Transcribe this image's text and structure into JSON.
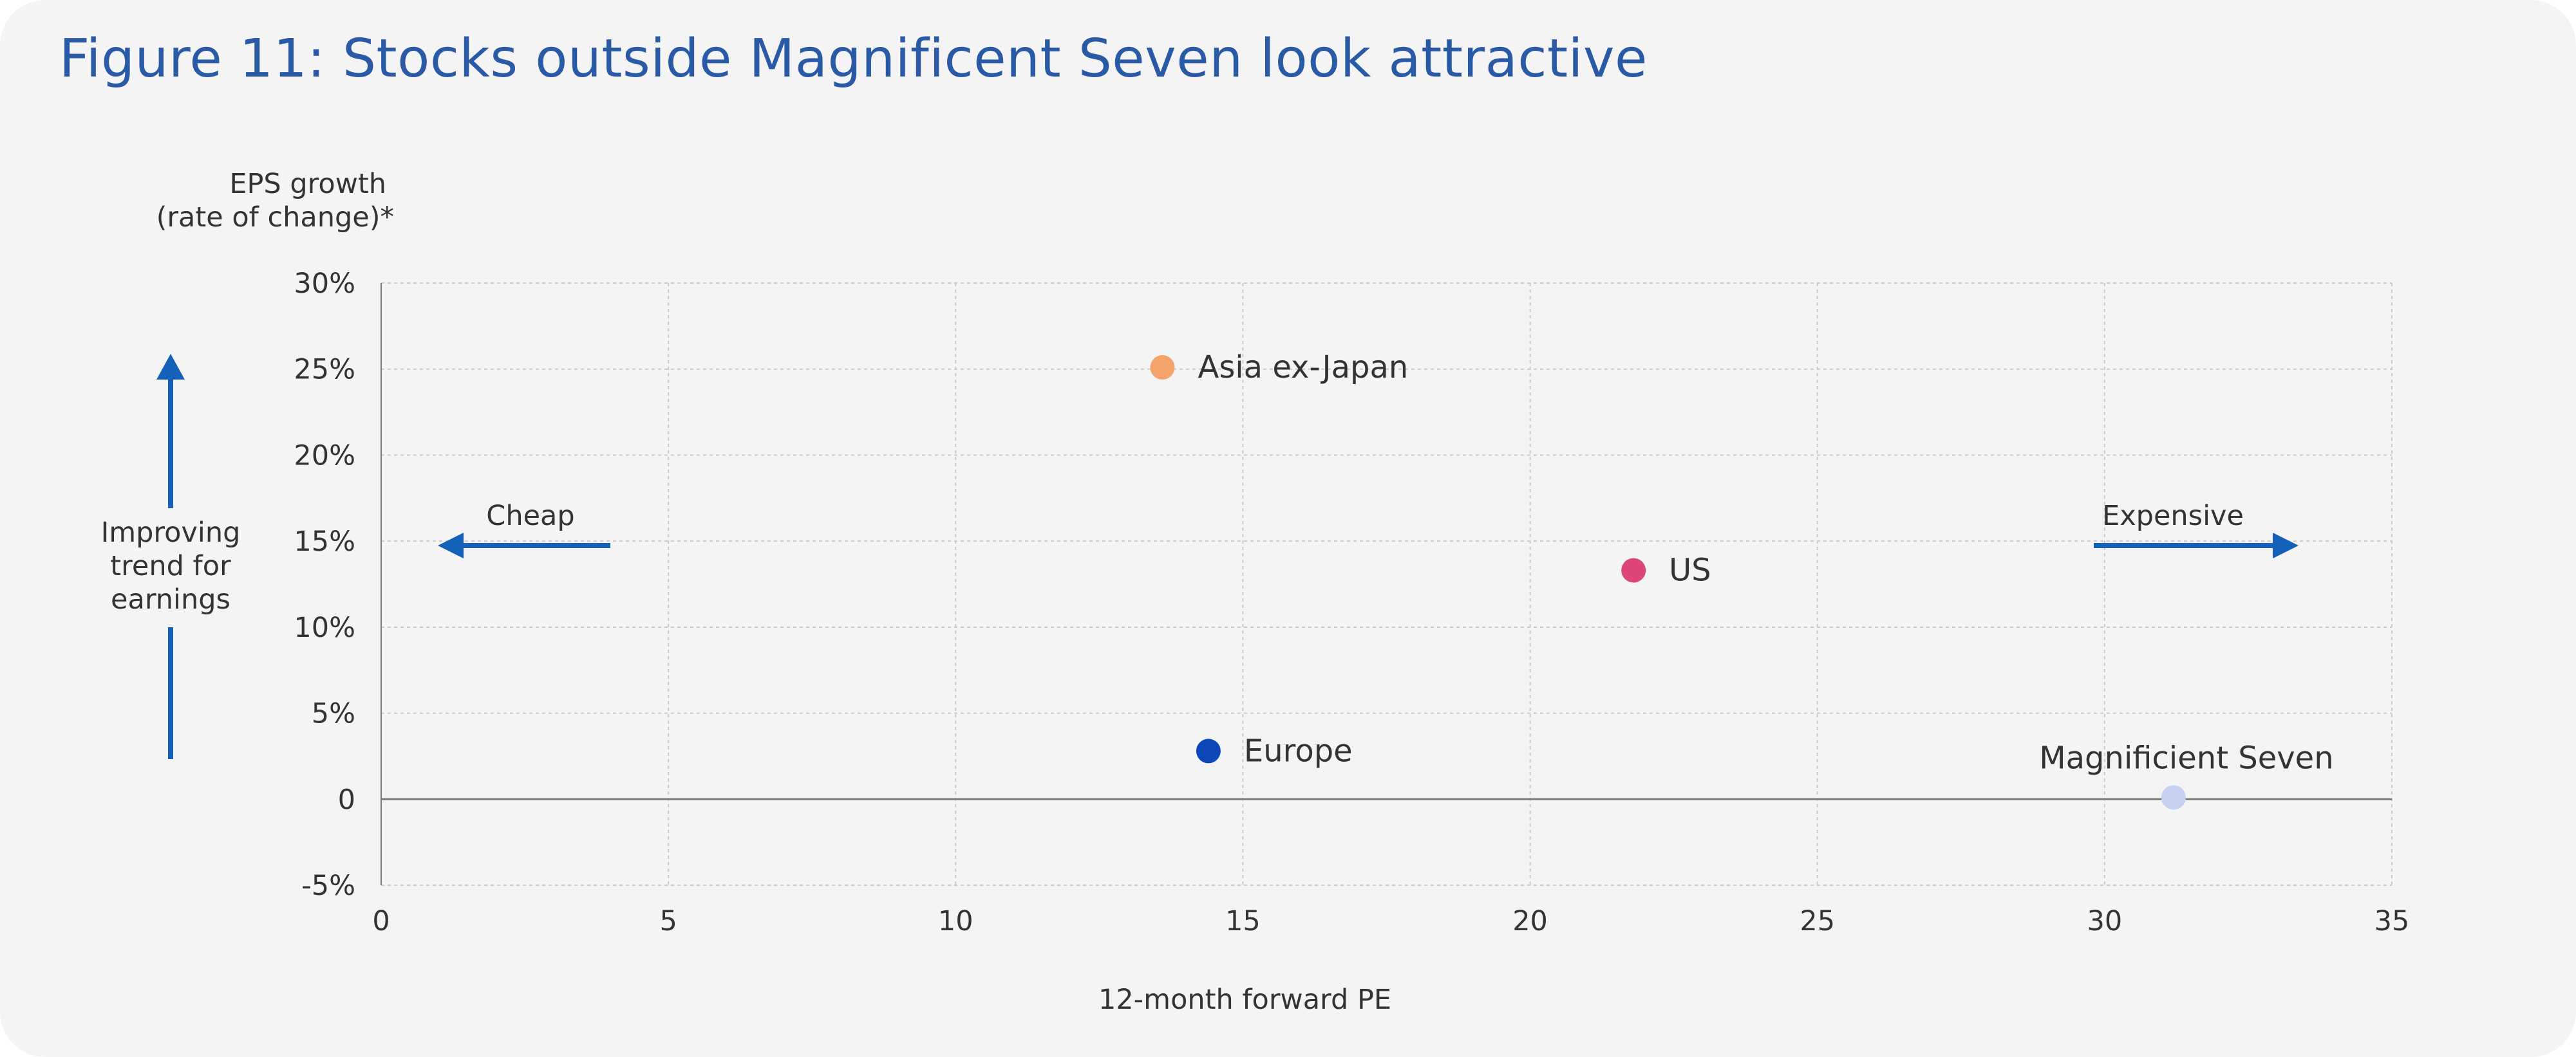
{
  "title": "Figure 11: Stocks outside Magnificent Seven look attractive",
  "colors": {
    "title": "#2a5aa6",
    "arrows": "#1560b8",
    "grid": "#c9c9c9",
    "zero_line": "#7a7a7a",
    "text": "#333333"
  },
  "annotations": {
    "left_label": [
      "Improving",
      "trend for",
      "earnings"
    ],
    "cheap": "Cheap",
    "expensive": "Expensive"
  },
  "chart_data": {
    "type": "scatter",
    "title": "Figure 11: Stocks outside Magnificent Seven look attractive",
    "xlabel": "12-month forward PE",
    "ylabel": [
      "EPS growth",
      "(rate of change)*"
    ],
    "xlim": [
      0,
      35
    ],
    "ylim": [
      -5,
      30
    ],
    "x_ticks": [
      {
        "value": 0,
        "label": "0"
      },
      {
        "value": 5,
        "label": "5"
      },
      {
        "value": 10,
        "label": "10"
      },
      {
        "value": 15,
        "label": "15"
      },
      {
        "value": 20,
        "label": "20"
      },
      {
        "value": 25,
        "label": "25"
      },
      {
        "value": 30,
        "label": "30"
      },
      {
        "value": 35,
        "label": "35"
      }
    ],
    "y_ticks": [
      {
        "value": -5,
        "label": "-5%"
      },
      {
        "value": 0,
        "label": "0"
      },
      {
        "value": 5,
        "label": "5%"
      },
      {
        "value": 10,
        "label": "10%"
      },
      {
        "value": 15,
        "label": "15%"
      },
      {
        "value": 20,
        "label": "20%"
      },
      {
        "value": 25,
        "label": "25%"
      },
      {
        "value": 30,
        "label": "30%"
      }
    ],
    "grid": true,
    "points": [
      {
        "name": "Asia ex-Japan",
        "x": 13.6,
        "y": 25.1,
        "color": "#f4a46a",
        "label_side": "right"
      },
      {
        "name": "US",
        "x": 21.8,
        "y": 13.3,
        "color": "#df4678",
        "label_side": "right"
      },
      {
        "name": "Europe",
        "x": 14.4,
        "y": 2.8,
        "color": "#0c47b7",
        "label_side": "right"
      },
      {
        "name": "Magnificient Seven",
        "x": 31.2,
        "y": 0.1,
        "color": "#c6d0f0",
        "label_side": "above"
      }
    ]
  }
}
